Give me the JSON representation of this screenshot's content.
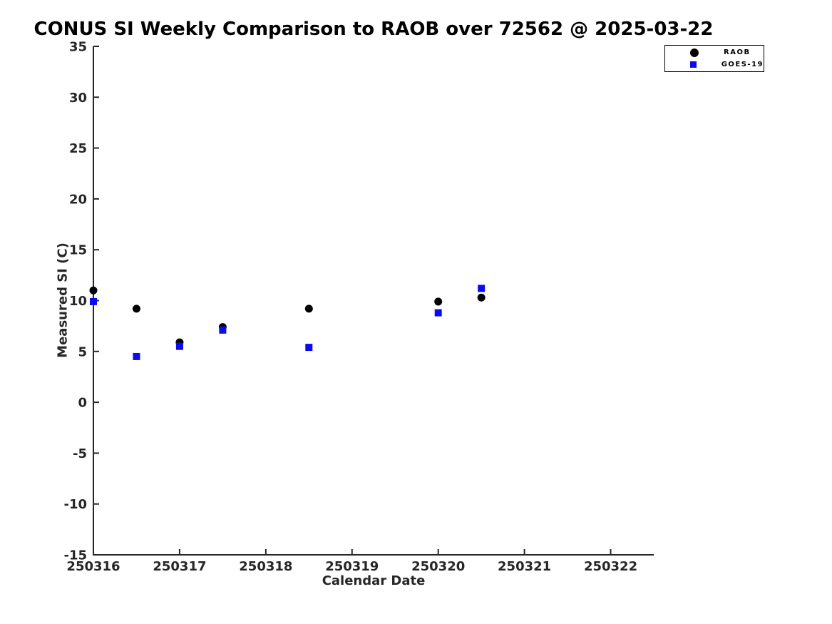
{
  "chart_data": {
    "type": "scatter",
    "title": "CONUS SI Weekly Comparison to RAOB over 72562 @ 2025-03-22",
    "xlabel": "Calendar Date",
    "ylabel": "Measured SI (C)",
    "xlim": [
      250316,
      250322.5
    ],
    "ylim": [
      -15,
      35
    ],
    "xticks": [
      250316,
      250317,
      250318,
      250319,
      250320,
      250321,
      250322
    ],
    "yticks": [
      -15,
      -10,
      -5,
      0,
      5,
      10,
      15,
      20,
      25,
      30,
      35
    ],
    "grid": false,
    "legend_position": "top-right-outside",
    "axis_color": "#262626",
    "text_color": "#262626",
    "series": [
      {
        "name": "RAOB",
        "marker": "circle",
        "color": "#000000",
        "x": [
          250316.0,
          250316.5,
          250317.0,
          250317.5,
          250318.5,
          250320.0,
          250320.5
        ],
        "y": [
          11.0,
          9.2,
          5.9,
          7.4,
          9.2,
          9.9,
          10.3
        ]
      },
      {
        "name": "GOES-19",
        "marker": "square",
        "color": "#0b0bee",
        "x": [
          250316.0,
          250316.5,
          250317.0,
          250317.5,
          250318.5,
          250320.0,
          250320.5
        ],
        "y": [
          9.9,
          4.5,
          5.5,
          7.1,
          5.4,
          8.8,
          11.2
        ]
      }
    ]
  }
}
